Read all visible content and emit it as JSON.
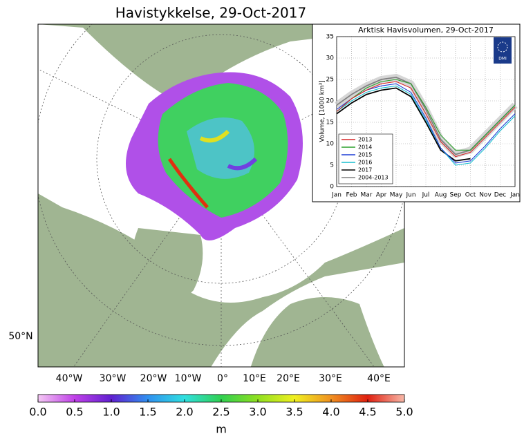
{
  "title": "Havistykkelse, 29-Oct-2017",
  "map": {
    "longitude_labels": [
      "40°W",
      "30°W",
      "20°W",
      "10°W",
      "0°",
      "10°E",
      "20°E",
      "30°E",
      "40°E"
    ],
    "latitude_label": "50°N"
  },
  "colorbar": {
    "label": "m",
    "lim": [
      0,
      5
    ],
    "ticks": [
      {
        "value": 0,
        "label": "0.0"
      },
      {
        "value": 0.5,
        "label": "0.5"
      },
      {
        "value": 1,
        "label": "1.0"
      },
      {
        "value": 1.5,
        "label": "1.5"
      },
      {
        "value": 2,
        "label": "2.0"
      },
      {
        "value": 2.5,
        "label": "2.5"
      },
      {
        "value": 3,
        "label": "3.0"
      },
      {
        "value": 3.5,
        "label": "3.5"
      },
      {
        "value": 4,
        "label": "4.0"
      },
      {
        "value": 4.5,
        "label": "4.5"
      },
      {
        "value": 5,
        "label": "5.0"
      }
    ]
  },
  "logo_text": "DMI",
  "chart_data": {
    "type": "line",
    "title": "Arktisk Havisvolumen, 29-Oct-2017",
    "y_label": "Volume, [1000 km³]",
    "categories": [
      "Jan",
      "Feb",
      "Mar",
      "Apr",
      "May",
      "Jun",
      "Jul",
      "Aug",
      "Sep",
      "Oct",
      "Nov",
      "Dec",
      "Jan"
    ],
    "ylim": [
      0,
      35
    ],
    "yticks": [
      0,
      5,
      10,
      15,
      20,
      25,
      30,
      35
    ],
    "grid": true,
    "legend": "lower left",
    "series": [
      {
        "name": "2013",
        "color": "#d62728",
        "values": [
          17.5,
          20.5,
          22.5,
          24,
          24.5,
          23,
          17,
          10.5,
          7,
          8,
          11.5,
          15,
          18.5
        ]
      },
      {
        "name": "2014",
        "color": "#2ca02c",
        "values": [
          17.5,
          20.5,
          23,
          24.5,
          25,
          24,
          18.5,
          12,
          8.5,
          8.5,
          12,
          15.5,
          19
        ]
      },
      {
        "name": "2015",
        "color": "#1f3fd6",
        "values": [
          18,
          20.5,
          22.5,
          23.5,
          24,
          22,
          16,
          9,
          5.5,
          6,
          9.5,
          13.5,
          17
        ]
      },
      {
        "name": "2016",
        "color": "#17becf",
        "values": [
          17.5,
          20,
          22,
          23,
          23.5,
          21.5,
          15.5,
          9,
          5,
          5.5,
          9,
          13,
          16.5
        ]
      },
      {
        "name": "2017",
        "color": "#000000",
        "values": [
          17,
          19.5,
          21.5,
          22.5,
          23,
          21,
          15,
          8.5,
          6,
          6.5,
          null,
          null,
          null
        ]
      },
      {
        "name": "2004-2013",
        "color": "#808080",
        "values": [
          19,
          21.5,
          23.5,
          25,
          25.5,
          24,
          18,
          11,
          7.5,
          8.5,
          12,
          15.5,
          19
        ]
      }
    ]
  }
}
